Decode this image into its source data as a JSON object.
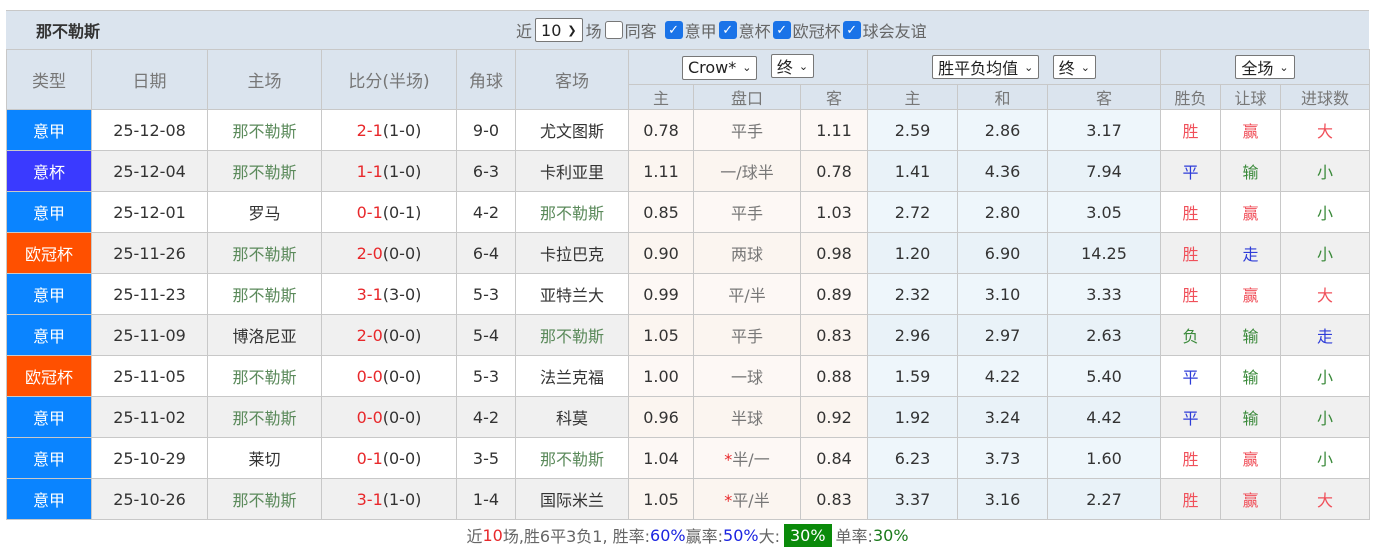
{
  "team": "那不勒斯",
  "filters": {
    "near": "近",
    "count": "10",
    "unit": "场",
    "checks": [
      {
        "label": "同客",
        "checked": false
      },
      {
        "label": "意甲",
        "checked": true
      },
      {
        "label": "意杯",
        "checked": true
      },
      {
        "label": "欧冠杯",
        "checked": true
      },
      {
        "label": "球会友谊",
        "checked": true
      }
    ]
  },
  "headers": {
    "type": "类型",
    "date": "日期",
    "home": "主场",
    "score": "比分(半场)",
    "corner": "角球",
    "away": "客场",
    "company": "Crow*",
    "asian_time": "终",
    "euro_kind": "胜平负均值",
    "euro_time": "终",
    "period": "全场",
    "sub": [
      "主",
      "盘口",
      "客",
      "主",
      "和",
      "客",
      "胜负",
      "让球",
      "进球数"
    ]
  },
  "colors": {
    "意甲": "#0a84ff",
    "意杯": "#3a3aff",
    "欧冠杯": "#ff5000"
  },
  "rows": [
    {
      "type": "意甲",
      "date": "25-12-08",
      "home": "那不勒斯",
      "ft": "2-1",
      "ht": "(1-0)",
      "corner": "9-0",
      "away": "尤文图斯",
      "ah": [
        "0.78",
        "平手",
        "1.11"
      ],
      "eu": [
        "2.59",
        "2.86",
        "3.17"
      ],
      "res": [
        "胜",
        "赢",
        "大"
      ]
    },
    {
      "type": "意杯",
      "date": "25-12-04",
      "home": "那不勒斯",
      "ft": "1-1",
      "ht": "(1-0)",
      "corner": "6-3",
      "away": "卡利亚里",
      "ah": [
        "1.11",
        "一/球半",
        "0.78"
      ],
      "eu": [
        "1.41",
        "4.36",
        "7.94"
      ],
      "res": [
        "平",
        "输",
        "小"
      ]
    },
    {
      "type": "意甲",
      "date": "25-12-01",
      "home": "罗马",
      "ft": "0-1",
      "ht": "(0-1)",
      "corner": "4-2",
      "away": "那不勒斯",
      "ah": [
        "0.85",
        "平手",
        "1.03"
      ],
      "eu": [
        "2.72",
        "2.80",
        "3.05"
      ],
      "res": [
        "胜",
        "赢",
        "小"
      ]
    },
    {
      "type": "欧冠杯",
      "date": "25-11-26",
      "home": "那不勒斯",
      "ft": "2-0",
      "ht": "(0-0)",
      "corner": "6-4",
      "away": "卡拉巴克",
      "ah": [
        "0.90",
        "两球",
        "0.98"
      ],
      "eu": [
        "1.20",
        "6.90",
        "14.25"
      ],
      "res": [
        "胜",
        "走",
        "小"
      ]
    },
    {
      "type": "意甲",
      "date": "25-11-23",
      "home": "那不勒斯",
      "ft": "3-1",
      "ht": "(3-0)",
      "corner": "5-3",
      "away": "亚特兰大",
      "ah": [
        "0.99",
        "平/半",
        "0.89"
      ],
      "eu": [
        "2.32",
        "3.10",
        "3.33"
      ],
      "res": [
        "胜",
        "赢",
        "大"
      ]
    },
    {
      "type": "意甲",
      "date": "25-11-09",
      "home": "博洛尼亚",
      "ft": "2-0",
      "ht": "(0-0)",
      "corner": "5-4",
      "away": "那不勒斯",
      "ah": [
        "1.05",
        "平手",
        "0.83"
      ],
      "eu": [
        "2.96",
        "2.97",
        "2.63"
      ],
      "res": [
        "负",
        "输",
        "走"
      ]
    },
    {
      "type": "欧冠杯",
      "date": "25-11-05",
      "home": "那不勒斯",
      "ft": "0-0",
      "ht": "(0-0)",
      "corner": "5-3",
      "away": "法兰克福",
      "ah": [
        "1.00",
        "一球",
        "0.88"
      ],
      "eu": [
        "1.59",
        "4.22",
        "5.40"
      ],
      "res": [
        "平",
        "输",
        "小"
      ]
    },
    {
      "type": "意甲",
      "date": "25-11-02",
      "home": "那不勒斯",
      "ft": "0-0",
      "ht": "(0-0)",
      "corner": "4-2",
      "away": "科莫",
      "ah": [
        "0.96",
        "半球",
        "0.92"
      ],
      "eu": [
        "1.92",
        "3.24",
        "4.42"
      ],
      "res": [
        "平",
        "输",
        "小"
      ]
    },
    {
      "type": "意甲",
      "date": "25-10-29",
      "home": "莱切",
      "ft": "0-1",
      "ht": "(0-0)",
      "corner": "3-5",
      "away": "那不勒斯",
      "ah": [
        "1.04",
        "*半/一",
        "0.84"
      ],
      "eu": [
        "6.23",
        "3.73",
        "1.60"
      ],
      "res": [
        "胜",
        "赢",
        "小"
      ]
    },
    {
      "type": "意甲",
      "date": "25-10-26",
      "home": "那不勒斯",
      "ft": "3-1",
      "ht": "(1-0)",
      "corner": "1-4",
      "away": "国际米兰",
      "ah": [
        "1.05",
        "*平/半",
        "0.83"
      ],
      "eu": [
        "3.37",
        "3.16",
        "2.27"
      ],
      "res": [
        "胜",
        "赢",
        "大"
      ]
    }
  ],
  "footer": {
    "p1": "近",
    "n": "10",
    "p2": "场,胜6平3负1, 胜率:",
    "win": "60%",
    "p3": " 赢率:",
    "ying": "50%",
    "p4": " 大:",
    "big": "30%",
    "p5": " 单率:",
    "odd": "30%"
  }
}
